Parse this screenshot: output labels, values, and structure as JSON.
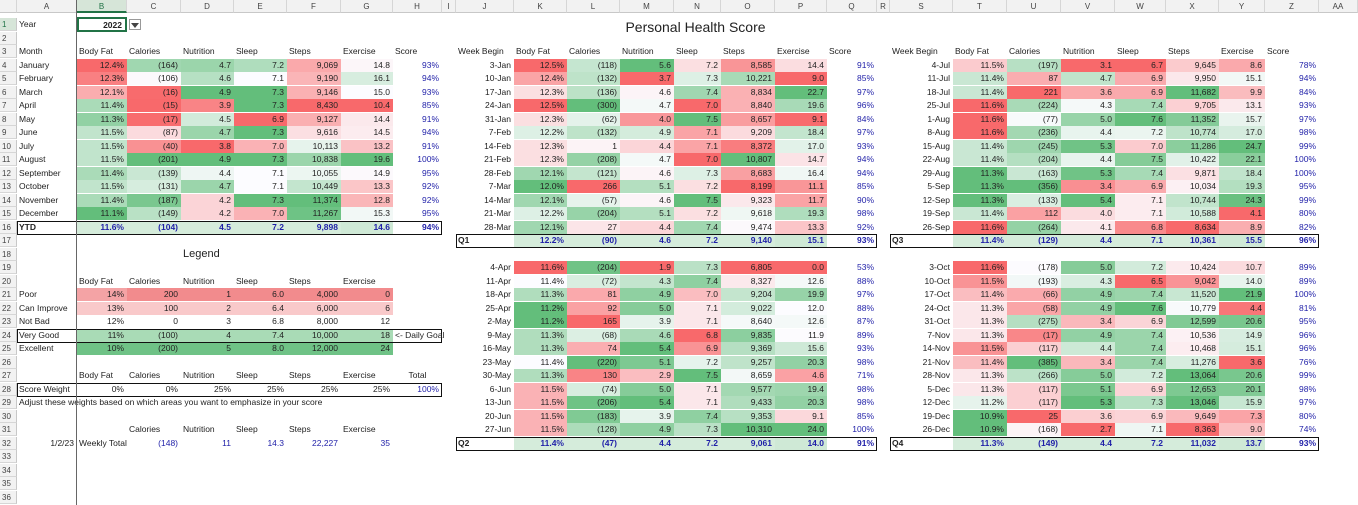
{
  "columns": [
    "A",
    "B",
    "C",
    "D",
    "E",
    "F",
    "G",
    "H",
    "I",
    "J",
    "K",
    "L",
    "M",
    "N",
    "O",
    "P",
    "Q",
    "R",
    "S",
    "T",
    "U",
    "V",
    "W",
    "X",
    "Y",
    "Z",
    "AA"
  ],
  "rows": [
    "1",
    "2",
    "3",
    "4",
    "5",
    "6",
    "7",
    "8",
    "9",
    "10",
    "11",
    "12",
    "13",
    "14",
    "15",
    "16",
    "17",
    "18",
    "19",
    "20",
    "21",
    "22",
    "23",
    "24",
    "25",
    "26",
    "27",
    "28",
    "29",
    "30",
    "31",
    "32",
    "33",
    "34",
    "35",
    "36"
  ],
  "title": "Personal Health Score",
  "year_label": "Year",
  "year_value": "2022",
  "headers": {
    "month": "Month",
    "week_begin": "Week Begin",
    "body_fat": "Body Fat",
    "calories": "Calories",
    "nutrition": "Nutrition",
    "sleep": "Sleep",
    "steps": "Steps",
    "exercise": "Exercise",
    "score": "Score"
  },
  "monthly": [
    [
      "January",
      "12.4%",
      "(164)",
      "4.7",
      "7.2",
      "9,069",
      "14.8",
      "93%"
    ],
    [
      "February",
      "12.3%",
      "(106)",
      "4.6",
      "7.1",
      "9,190",
      "16.1",
      "94%"
    ],
    [
      "March",
      "12.1%",
      "(16)",
      "4.9",
      "7.3",
      "9,146",
      "15.0",
      "93%"
    ],
    [
      "April",
      "11.4%",
      "(15)",
      "3.9",
      "7.3",
      "8,430",
      "10.4",
      "85%"
    ],
    [
      "May",
      "11.3%",
      "(17)",
      "4.5",
      "6.9",
      "9,127",
      "14.4",
      "91%"
    ],
    [
      "June",
      "11.5%",
      "(87)",
      "4.7",
      "7.3",
      "9,616",
      "14.5",
      "94%"
    ],
    [
      "July",
      "11.5%",
      "(40)",
      "3.8",
      "7.0",
      "10,113",
      "13.2",
      "91%"
    ],
    [
      "August",
      "11.5%",
      "(201)",
      "4.9",
      "7.3",
      "10,838",
      "19.6",
      "100%"
    ],
    [
      "September",
      "11.4%",
      "(139)",
      "4.4",
      "7.1",
      "10,055",
      "14.9",
      "95%"
    ],
    [
      "October",
      "11.5%",
      "(131)",
      "4.7",
      "7.1",
      "10,449",
      "13.3",
      "92%"
    ],
    [
      "November",
      "11.4%",
      "(187)",
      "4.2",
      "7.3",
      "11,374",
      "12.8",
      "92%"
    ],
    [
      "December",
      "11.1%",
      "(149)",
      "4.2",
      "7.0",
      "11,267",
      "15.3",
      "95%"
    ]
  ],
  "ytd": [
    "YTD",
    "11.6%",
    "(104)",
    "4.5",
    "7.2",
    "9,898",
    "14.6",
    "94%"
  ],
  "legend_title": "Legend",
  "legend_headers": [
    "Body Fat",
    "Calories",
    "Nutrition",
    "Sleep",
    "Steps",
    "Exercise"
  ],
  "legend_rows": [
    [
      "Poor",
      "14%",
      "200",
      "1",
      "6.0",
      "4,000",
      "0"
    ],
    [
      "Can Improve",
      "13%",
      "100",
      "2",
      "6.4",
      "6,000",
      "6"
    ],
    [
      "Not Bad",
      "12%",
      "0",
      "3",
      "6.8",
      "8,000",
      "12"
    ],
    [
      "Very Good",
      "11%",
      "(100)",
      "4",
      "7.4",
      "10,000",
      "18"
    ],
    [
      "Excellent",
      "10%",
      "(200)",
      "5",
      "8.0",
      "12,000",
      "24"
    ]
  ],
  "daily_goal": "<- Daily Goal",
  "weight_headers": [
    "Body Fat",
    "Calories",
    "Nutrition",
    "Sleep",
    "Steps",
    "Exercise",
    "Total"
  ],
  "score_weight": [
    "Score Weight",
    "0%",
    "0%",
    "25%",
    "25%",
    "25%",
    "25%",
    "100%"
  ],
  "weight_note": "Adjust these weights based on which areas you want to emphasize in your score",
  "weekly_headers": [
    "Calories",
    "Nutrition",
    "Sleep",
    "Steps",
    "Exercise"
  ],
  "weekly_total": [
    "1/2/23",
    "Weekly Total",
    "(148)",
    "11",
    "14.3",
    "22,227",
    "35"
  ],
  "q1": [
    [
      "3-Jan",
      "12.5%",
      "(118)",
      "5.6",
      "7.2",
      "8,585",
      "14.4",
      "91%"
    ],
    [
      "10-Jan",
      "12.4%",
      "(132)",
      "3.7",
      "7.3",
      "10,221",
      "9.0",
      "85%"
    ],
    [
      "17-Jan",
      "12.3%",
      "(136)",
      "4.6",
      "7.4",
      "8,834",
      "22.7",
      "97%"
    ],
    [
      "24-Jan",
      "12.5%",
      "(300)",
      "4.7",
      "7.0",
      "8,840",
      "19.6",
      "96%"
    ],
    [
      "31-Jan",
      "12.3%",
      "(62)",
      "4.0",
      "7.5",
      "8,657",
      "9.1",
      "84%"
    ],
    [
      "7-Feb",
      "12.2%",
      "(132)",
      "4.9",
      "7.1",
      "9,209",
      "18.4",
      "97%"
    ],
    [
      "14-Feb",
      "12.3%",
      "1",
      "4.4",
      "7.1",
      "8,372",
      "17.0",
      "93%"
    ],
    [
      "21-Feb",
      "12.3%",
      "(208)",
      "4.7",
      "7.0",
      "10,807",
      "14.7",
      "94%"
    ],
    [
      "28-Feb",
      "12.1%",
      "(121)",
      "4.6",
      "7.3",
      "8,683",
      "16.4",
      "94%"
    ],
    [
      "7-Mar",
      "12.0%",
      "266",
      "5.1",
      "7.2",
      "8,199",
      "11.1",
      "85%"
    ],
    [
      "14-Mar",
      "12.1%",
      "(57)",
      "4.6",
      "7.5",
      "9,323",
      "11.7",
      "90%"
    ],
    [
      "21-Mar",
      "12.2%",
      "(204)",
      "5.1",
      "7.2",
      "9,618",
      "19.3",
      "98%"
    ],
    [
      "28-Mar",
      "12.1%",
      "27",
      "4.4",
      "7.4",
      "9,474",
      "13.3",
      "92%"
    ]
  ],
  "q1_total": [
    "Q1",
    "12.2%",
    "(90)",
    "4.6",
    "7.2",
    "9,140",
    "15.1",
    "93%"
  ],
  "q2": [
    [
      "4-Apr",
      "11.6%",
      "(204)",
      "1.9",
      "7.3",
      "6,805",
      "0.0",
      "53%"
    ],
    [
      "11-Apr",
      "11.4%",
      "(72)",
      "4.3",
      "7.4",
      "8,327",
      "12.6",
      "88%"
    ],
    [
      "18-Apr",
      "11.3%",
      "81",
      "4.9",
      "7.0",
      "9,204",
      "19.9",
      "97%"
    ],
    [
      "25-Apr",
      "11.2%",
      "92",
      "5.0",
      "7.1",
      "9,022",
      "12.0",
      "88%"
    ],
    [
      "2-May",
      "11.2%",
      "165",
      "3.9",
      "7.1",
      "8,640",
      "12.6",
      "87%"
    ],
    [
      "9-May",
      "11.3%",
      "(68)",
      "4.6",
      "6.8",
      "9,835",
      "11.9",
      "89%"
    ],
    [
      "16-May",
      "11.3%",
      "74",
      "5.4",
      "6.9",
      "9,369",
      "15.6",
      "93%"
    ],
    [
      "23-May",
      "11.4%",
      "(220)",
      "5.1",
      "7.2",
      "9,257",
      "20.3",
      "98%"
    ],
    [
      "30-May",
      "11.3%",
      "130",
      "2.9",
      "7.5",
      "8,659",
      "4.6",
      "71%"
    ],
    [
      "6-Jun",
      "11.5%",
      "(74)",
      "5.0",
      "7.1",
      "9,577",
      "19.4",
      "98%"
    ],
    [
      "13-Jun",
      "11.5%",
      "(206)",
      "5.4",
      "7.1",
      "9,433",
      "20.3",
      "98%"
    ],
    [
      "20-Jun",
      "11.5%",
      "(183)",
      "3.9",
      "7.4",
      "9,353",
      "9.1",
      "85%"
    ],
    [
      "27-Jun",
      "11.5%",
      "(128)",
      "4.9",
      "7.3",
      "10,310",
      "24.0",
      "100%"
    ]
  ],
  "q2_total": [
    "Q2",
    "11.4%",
    "(47)",
    "4.4",
    "7.2",
    "9,061",
    "14.0",
    "91%"
  ],
  "q3": [
    [
      "4-Jul",
      "11.5%",
      "(197)",
      "3.1",
      "6.7",
      "9,645",
      "8.6",
      "78%"
    ],
    [
      "11-Jul",
      "11.4%",
      "87",
      "4.7",
      "6.9",
      "9,950",
      "15.1",
      "94%"
    ],
    [
      "18-Jul",
      "11.4%",
      "221",
      "3.6",
      "6.9",
      "11,682",
      "9.9",
      "84%"
    ],
    [
      "25-Jul",
      "11.6%",
      "(224)",
      "4.3",
      "7.4",
      "9,705",
      "13.1",
      "93%"
    ],
    [
      "1-Aug",
      "11.6%",
      "(77)",
      "5.0",
      "7.6",
      "11,352",
      "15.7",
      "97%"
    ],
    [
      "8-Aug",
      "11.6%",
      "(236)",
      "4.4",
      "7.2",
      "10,774",
      "17.0",
      "98%"
    ],
    [
      "15-Aug",
      "11.4%",
      "(245)",
      "5.3",
      "7.0",
      "11,286",
      "24.7",
      "99%"
    ],
    [
      "22-Aug",
      "11.4%",
      "(204)",
      "4.4",
      "7.5",
      "10,422",
      "22.1",
      "100%"
    ],
    [
      "29-Aug",
      "11.3%",
      "(163)",
      "5.3",
      "7.4",
      "9,871",
      "18.4",
      "100%"
    ],
    [
      "5-Sep",
      "11.3%",
      "(356)",
      "3.4",
      "6.9",
      "10,034",
      "19.3",
      "95%"
    ],
    [
      "12-Sep",
      "11.3%",
      "(133)",
      "5.4",
      "7.1",
      "10,744",
      "24.3",
      "99%"
    ],
    [
      "19-Sep",
      "11.4%",
      "112",
      "4.0",
      "7.1",
      "10,588",
      "4.1",
      "80%"
    ],
    [
      "26-Sep",
      "11.6%",
      "(264)",
      "4.1",
      "6.8",
      "8,634",
      "8.9",
      "82%"
    ]
  ],
  "q3_total": [
    "Q3",
    "11.4%",
    "(129)",
    "4.4",
    "7.1",
    "10,361",
    "15.5",
    "96%"
  ],
  "q4": [
    [
      "3-Oct",
      "11.6%",
      "(178)",
      "5.0",
      "7.2",
      "10,424",
      "10.7",
      "89%"
    ],
    [
      "10-Oct",
      "11.5%",
      "(193)",
      "4.3",
      "6.5",
      "9,042",
      "14.0",
      "89%"
    ],
    [
      "17-Oct",
      "11.4%",
      "(66)",
      "4.9",
      "7.4",
      "11,520",
      "21.9",
      "100%"
    ],
    [
      "24-Oct",
      "11.3%",
      "(58)",
      "4.9",
      "7.6",
      "10,779",
      "4.4",
      "81%"
    ],
    [
      "31-Oct",
      "11.3%",
      "(275)",
      "3.4",
      "6.9",
      "12,599",
      "20.6",
      "95%"
    ],
    [
      "7-Nov",
      "11.3%",
      "(17)",
      "4.9",
      "7.4",
      "10,536",
      "14.9",
      "96%"
    ],
    [
      "14-Nov",
      "11.5%",
      "(117)",
      "4.4",
      "7.4",
      "10,468",
      "15.1",
      "96%"
    ],
    [
      "21-Nov",
      "11.4%",
      "(385)",
      "3.4",
      "7.4",
      "11,276",
      "3.6",
      "76%"
    ],
    [
      "28-Nov",
      "11.3%",
      "(266)",
      "5.0",
      "7.2",
      "13,064",
      "20.6",
      "99%"
    ],
    [
      "5-Dec",
      "11.3%",
      "(117)",
      "5.1",
      "6.9",
      "12,653",
      "20.1",
      "98%"
    ],
    [
      "12-Dec",
      "11.2%",
      "(117)",
      "5.3",
      "7.3",
      "13,046",
      "15.9",
      "97%"
    ],
    [
      "19-Dec",
      "10.9%",
      "25",
      "3.6",
      "6.9",
      "9,649",
      "7.3",
      "80%"
    ],
    [
      "26-Dec",
      "10.9%",
      "(168)",
      "2.7",
      "7.1",
      "8,363",
      "9.0",
      "74%"
    ]
  ],
  "q4_total": [
    "Q4",
    "11.3%",
    "(149)",
    "4.4",
    "7.2",
    "11,032",
    "13.7",
    "93%"
  ],
  "colors": {
    "green_dark": "#63be7b",
    "green_light": "#e8f5ea",
    "red_dark": "#f8696b",
    "red_light": "#fce4e4",
    "neutral": "#fcfcff",
    "blue_text": "#1f1fa8",
    "grid_header": "#f2f2f2"
  }
}
